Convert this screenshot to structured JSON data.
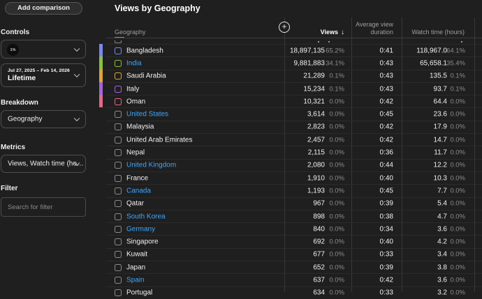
{
  "sidebar": {
    "add_comparison_label": "Add comparison",
    "controls_label": "Controls",
    "channel": {
      "avatar_text": "1%"
    },
    "date_range": {
      "range": "Jul 27, 2025 – Feb 14, 2026",
      "preset": "Lifetime"
    },
    "breakdown_label": "Breakdown",
    "breakdown_value": "Geography",
    "metrics_label": "Metrics",
    "metrics_value": "Views, Watch time (ho…",
    "filter_label": "Filter",
    "filter_placeholder": "Search for filter"
  },
  "main": {
    "title": "Views by Geography",
    "table": {
      "columns": {
        "geography": "Geography",
        "views": "Views",
        "sort_arrow": "↓",
        "avg_view_duration": "Average view duration",
        "watch_time": "Watch time (hours)"
      },
      "add_metric_icon": "+",
      "rows": [
        {
          "name": "Bangladesh",
          "link": false,
          "color": "#7b86f0",
          "views": "18,897,135",
          "views_pct": "65.2%",
          "duration": "0:41",
          "watch": "118,967.0",
          "watch_pct": "64.1%"
        },
        {
          "name": "India",
          "link": true,
          "color": "#8ac043",
          "views": "9,881,883",
          "views_pct": "34.1%",
          "duration": "0:43",
          "watch": "65,658.1",
          "watch_pct": "35.4%"
        },
        {
          "name": "Saudi Arabia",
          "link": false,
          "color": "#dfa33a",
          "views": "21,289",
          "views_pct": "0.1%",
          "duration": "0:43",
          "watch": "135.5",
          "watch_pct": "0.1%"
        },
        {
          "name": "Italy",
          "link": false,
          "color": "#a266d8",
          "views": "15,234",
          "views_pct": "0.1%",
          "duration": "0:43",
          "watch": "93.7",
          "watch_pct": "0.1%"
        },
        {
          "name": "Oman",
          "link": false,
          "color": "#e06a87",
          "views": "10,321",
          "views_pct": "0.0%",
          "duration": "0:42",
          "watch": "64.4",
          "watch_pct": "0.0%"
        },
        {
          "name": "United States",
          "link": true,
          "views": "3,614",
          "views_pct": "0.0%",
          "duration": "0:45",
          "watch": "23.6",
          "watch_pct": "0.0%"
        },
        {
          "name": "Malaysia",
          "link": false,
          "views": "2,823",
          "views_pct": "0.0%",
          "duration": "0:42",
          "watch": "17.9",
          "watch_pct": "0.0%"
        },
        {
          "name": "United Arab Emirates",
          "link": false,
          "views": "2,457",
          "views_pct": "0.0%",
          "duration": "0:42",
          "watch": "14.7",
          "watch_pct": "0.0%"
        },
        {
          "name": "Nepal",
          "link": false,
          "views": "2,115",
          "views_pct": "0.0%",
          "duration": "0:36",
          "watch": "11.7",
          "watch_pct": "0.0%"
        },
        {
          "name": "United Kingdom",
          "link": true,
          "views": "2,080",
          "views_pct": "0.0%",
          "duration": "0:44",
          "watch": "12.2",
          "watch_pct": "0.0%"
        },
        {
          "name": "France",
          "link": false,
          "views": "1,910",
          "views_pct": "0.0%",
          "duration": "0:40",
          "watch": "10.3",
          "watch_pct": "0.0%"
        },
        {
          "name": "Canada",
          "link": true,
          "views": "1,193",
          "views_pct": "0.0%",
          "duration": "0:45",
          "watch": "7.7",
          "watch_pct": "0.0%"
        },
        {
          "name": "Qatar",
          "link": false,
          "views": "967",
          "views_pct": "0.0%",
          "duration": "0:39",
          "watch": "5.4",
          "watch_pct": "0.0%"
        },
        {
          "name": "South Korea",
          "link": true,
          "views": "898",
          "views_pct": "0.0%",
          "duration": "0:38",
          "watch": "4.7",
          "watch_pct": "0.0%"
        },
        {
          "name": "Germany",
          "link": true,
          "views": "840",
          "views_pct": "0.0%",
          "duration": "0:34",
          "watch": "3.6",
          "watch_pct": "0.0%"
        },
        {
          "name": "Singapore",
          "link": false,
          "views": "692",
          "views_pct": "0.0%",
          "duration": "0:40",
          "watch": "4.2",
          "watch_pct": "0.0%"
        },
        {
          "name": "Kuwait",
          "link": false,
          "views": "677",
          "views_pct": "0.0%",
          "duration": "0:33",
          "watch": "3.4",
          "watch_pct": "0.0%"
        },
        {
          "name": "Japan",
          "link": false,
          "views": "652",
          "views_pct": "0.0%",
          "duration": "0:39",
          "watch": "3.8",
          "watch_pct": "0.0%"
        },
        {
          "name": "Spain",
          "link": true,
          "views": "637",
          "views_pct": "0.0%",
          "duration": "0:42",
          "watch": "3.6",
          "watch_pct": "0.0%"
        },
        {
          "name": "Portugal",
          "link": false,
          "views": "634",
          "views_pct": "0.0%",
          "duration": "0:33",
          "watch": "3.2",
          "watch_pct": "0.0%",
          "clipped": true
        }
      ]
    }
  },
  "colors": {
    "background": "#1f1f1f",
    "link_blue": "#3ea6ff",
    "series": [
      "#7b86f0",
      "#8ac043",
      "#dfa33a",
      "#a266d8",
      "#e06a87"
    ],
    "unchecked_checkbox": "#8a8a8a"
  }
}
